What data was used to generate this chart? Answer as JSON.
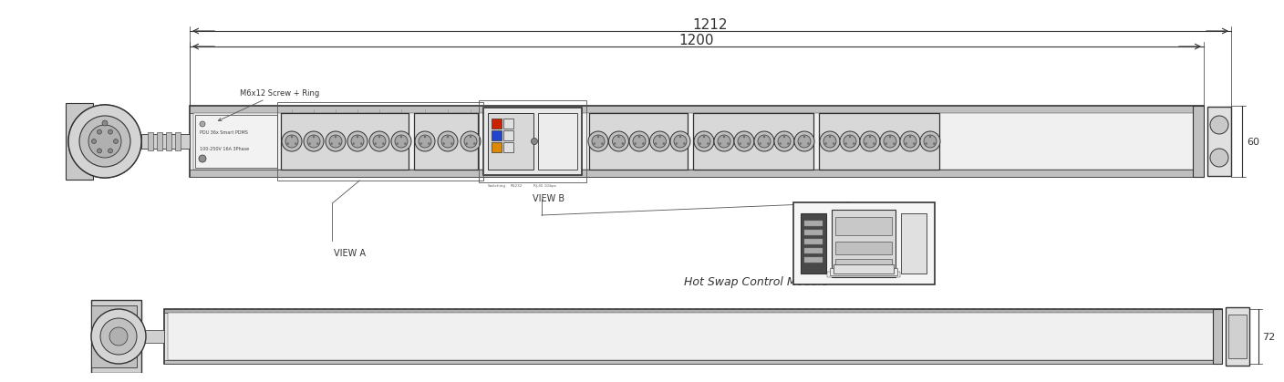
{
  "bg_color": "#ffffff",
  "lc": "#555555",
  "lc_dark": "#333333",
  "gray_body": "#e8e8e8",
  "gray_mid": "#d8d8d8",
  "gray_dark": "#c0c0c0",
  "gray_outlet": "#b8b8b8",
  "gray_light": "#f0f0f0",
  "accent_red": "#cc2200",
  "accent_blue": "#2244cc",
  "accent_orange": "#dd8800",
  "dim_1212": "1212",
  "dim_1200": "1200",
  "dim_60": "60",
  "dim_72": "72",
  "label_m6": "M6x12 Screw + Ring",
  "label_pdu1": "PDU 36x Smart PDMS",
  "label_pdu2": "100-250V 16A 3Phase",
  "label_view_a": "VIEW A",
  "label_view_b": "VIEW B",
  "label_hot_swap": "Hot Swap Control Module"
}
